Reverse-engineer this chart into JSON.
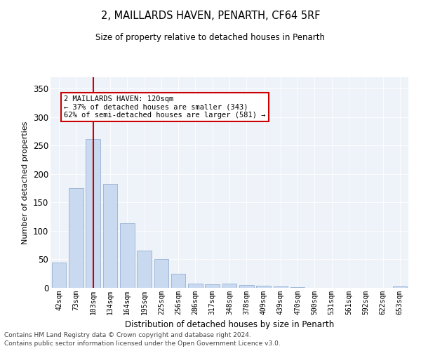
{
  "title1": "2, MAILLARDS HAVEN, PENARTH, CF64 5RF",
  "title2": "Size of property relative to detached houses in Penarth",
  "xlabel": "Distribution of detached houses by size in Penarth",
  "ylabel": "Number of detached properties",
  "categories": [
    "42sqm",
    "73sqm",
    "103sqm",
    "134sqm",
    "164sqm",
    "195sqm",
    "225sqm",
    "256sqm",
    "286sqm",
    "317sqm",
    "348sqm",
    "378sqm",
    "409sqm",
    "439sqm",
    "470sqm",
    "500sqm",
    "531sqm",
    "561sqm",
    "592sqm",
    "622sqm",
    "653sqm"
  ],
  "values": [
    44,
    175,
    261,
    183,
    113,
    65,
    50,
    25,
    8,
    6,
    8,
    5,
    4,
    3,
    1,
    0,
    0,
    0,
    0,
    0,
    2
  ],
  "bar_color": "#c9d9f0",
  "bar_edgecolor": "#a0b8d8",
  "vline_x_index": 2,
  "vline_color": "#cc0000",
  "annotation_line1": "2 MAILLARDS HAVEN: 120sqm",
  "annotation_line2": "← 37% of detached houses are smaller (343)",
  "annotation_line3": "62% of semi-detached houses are larger (581) →",
  "ylim": [
    0,
    370
  ],
  "yticks": [
    0,
    50,
    100,
    150,
    200,
    250,
    300,
    350
  ],
  "background_color": "#eef2f9",
  "footer1": "Contains HM Land Registry data © Crown copyright and database right 2024.",
  "footer2": "Contains public sector information licensed under the Open Government Licence v3.0."
}
